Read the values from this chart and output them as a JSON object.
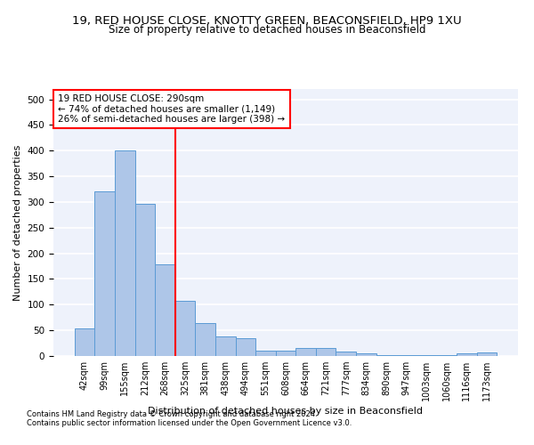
{
  "title1": "19, RED HOUSE CLOSE, KNOTTY GREEN, BEACONSFIELD, HP9 1XU",
  "title2": "Size of property relative to detached houses in Beaconsfield",
  "xlabel": "Distribution of detached houses by size in Beaconsfield",
  "ylabel": "Number of detached properties",
  "categories": [
    "42sqm",
    "99sqm",
    "155sqm",
    "212sqm",
    "268sqm",
    "325sqm",
    "381sqm",
    "438sqm",
    "494sqm",
    "551sqm",
    "608sqm",
    "664sqm",
    "721sqm",
    "777sqm",
    "834sqm",
    "890sqm",
    "947sqm",
    "1003sqm",
    "1060sqm",
    "1116sqm",
    "1173sqm"
  ],
  "values": [
    54,
    320,
    400,
    297,
    178,
    107,
    65,
    39,
    35,
    11,
    10,
    15,
    16,
    9,
    5,
    2,
    1,
    1,
    1,
    6,
    7
  ],
  "bar_color": "#aec6e8",
  "bar_edge_color": "#5b9bd5",
  "property_line_x": 4.5,
  "property_line_label": "19 RED HOUSE CLOSE: 290sqm",
  "annotation_line2": "← 74% of detached houses are smaller (1,149)",
  "annotation_line3": "26% of semi-detached houses are larger (398) →",
  "ylim": [
    0,
    520
  ],
  "footnote1": "Contains HM Land Registry data © Crown copyright and database right 2024.",
  "footnote2": "Contains public sector information licensed under the Open Government Licence v3.0.",
  "bg_color": "#eef2fb",
  "grid_color": "#ffffff",
  "title1_fontsize": 9.5,
  "title2_fontsize": 8.5,
  "tick_fontsize": 7,
  "ylabel_fontsize": 8,
  "xlabel_fontsize": 8,
  "annotation_fontsize": 7.5,
  "footnote_fontsize": 6
}
